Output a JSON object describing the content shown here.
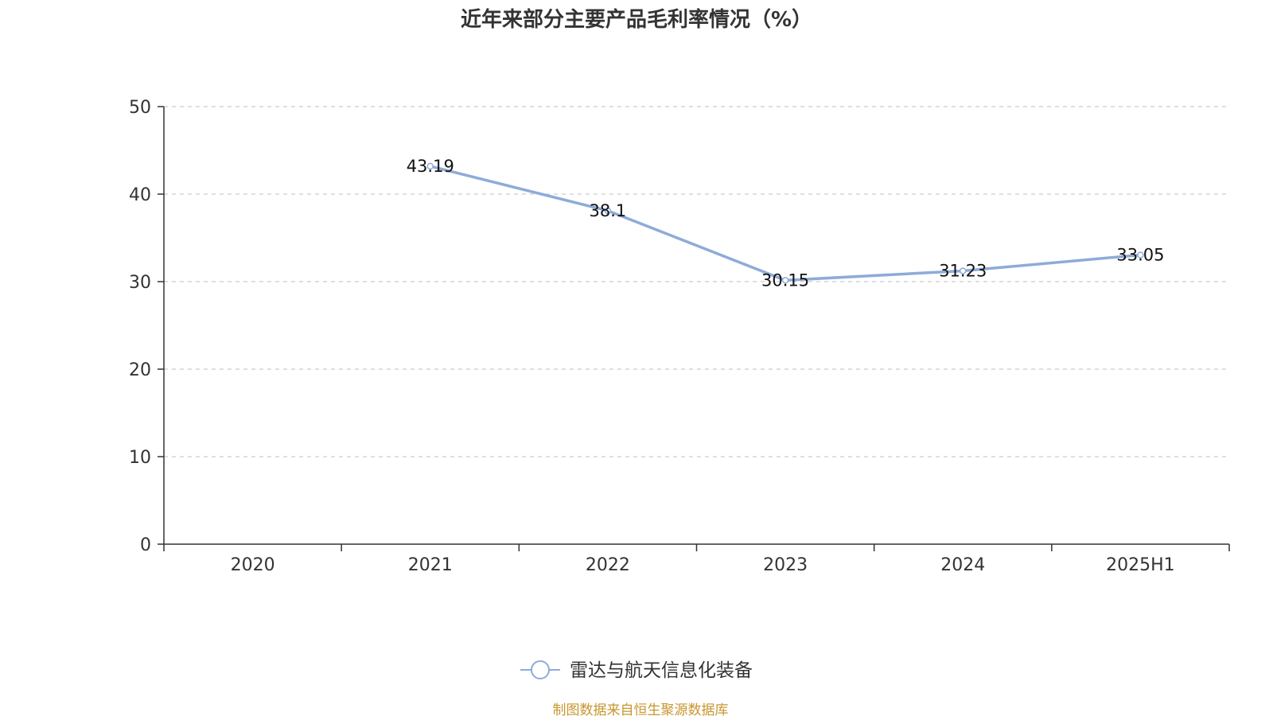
{
  "chart_data": {
    "type": "line",
    "title": "近年来部分主要产品毛利率情况（%）",
    "categories": [
      "2020",
      "2021",
      "2022",
      "2023",
      "2024",
      "2025H1"
    ],
    "series": [
      {
        "name": "雷达与航天信息化装备",
        "values": [
          null,
          43.19,
          38.1,
          30.15,
          31.23,
          33.05
        ],
        "labels": [
          "",
          "43.19",
          "38.1",
          "30.15",
          "31.23",
          "33.05"
        ],
        "color": "#8eabd8"
      }
    ],
    "y_ticks": [
      "0",
      "10",
      "20",
      "30",
      "40",
      "50"
    ],
    "ylim": [
      0,
      50
    ],
    "grid": "horizontal-dashed",
    "legend_position": "bottom-center"
  },
  "footer": {
    "source": "制图数据来自恒生聚源数据库",
    "source_color": "#c8962e"
  }
}
